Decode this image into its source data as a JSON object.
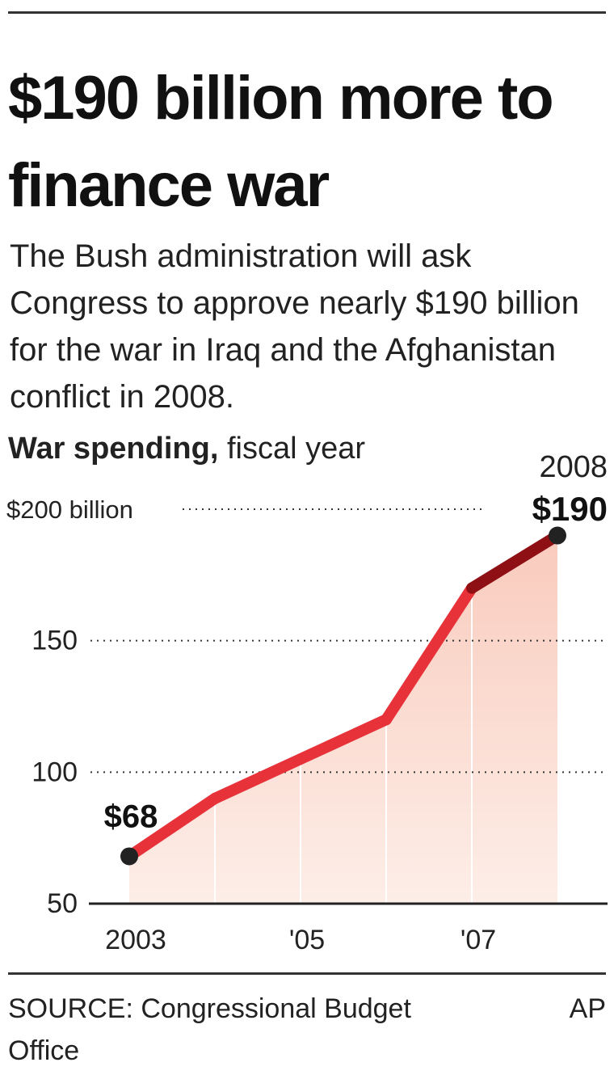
{
  "headline": "$190 billion more to finance war",
  "subtitle": "The Bush administration will ask Congress to approve nearly $190 billion for the war in Iraq and the Afghanistan conflict in 2008.",
  "chart_label": {
    "bold": "War spending,",
    "rest": "fiscal year"
  },
  "source": "SOURCE: Congressional Budget Office",
  "credit": "AP",
  "chart_data": {
    "type": "area",
    "title": "War spending, fiscal year",
    "x": [
      2003,
      2004,
      2005,
      2006,
      2007,
      2008
    ],
    "values": [
      68,
      90,
      105,
      120,
      170,
      190
    ],
    "ylim": [
      50,
      200
    ],
    "yticks": [
      {
        "value": 200,
        "label": "$200 billion"
      },
      {
        "value": 150,
        "label": "150"
      },
      {
        "value": 100,
        "label": "100"
      },
      {
        "value": 50,
        "label": "50"
      }
    ],
    "xticks": [
      {
        "value": 2003,
        "label": "2003"
      },
      {
        "value": 2005,
        "label": "'05"
      },
      {
        "value": 2007,
        "label": "'07"
      }
    ],
    "annotations": [
      {
        "x": 2003,
        "y": 68,
        "label": "$68"
      },
      {
        "x": 2008,
        "y": 190,
        "year_label": "2008",
        "label": "$190"
      }
    ],
    "grid": "dotted horizontal",
    "colors": {
      "line": "#e8323a",
      "projected_line": "#8e0f14",
      "area": "#f9cbbd",
      "point": "#222222"
    }
  }
}
